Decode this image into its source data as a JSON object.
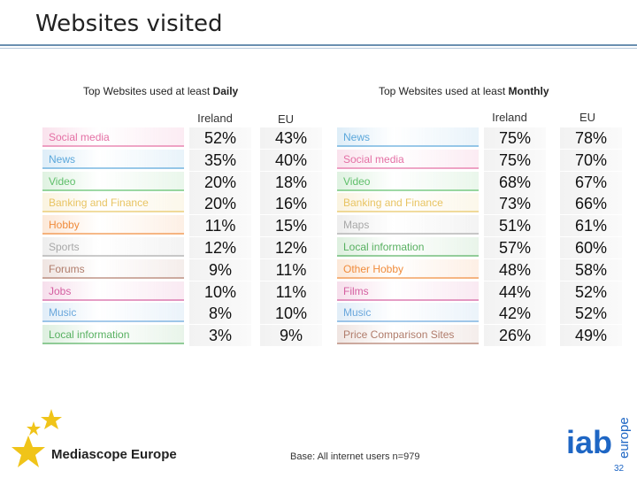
{
  "slide": {
    "title": "Websites visited",
    "base_note": "Base: All internet users n=979",
    "page_number": "32",
    "logo_left": "Mediascope Europe",
    "logo_right": "iab",
    "logo_right_sub": "europe"
  },
  "daily": {
    "title_prefix": "Top Websites used at least ",
    "title_bold": "Daily",
    "col_ireland": "Ireland",
    "col_eu": "EU",
    "rows": [
      {
        "label": "Social media",
        "ireland": "52%",
        "eu": "43%",
        "color": "#e46fa4"
      },
      {
        "label": "News",
        "ireland": "35%",
        "eu": "40%",
        "color": "#5aa7db"
      },
      {
        "label": "Video",
        "ireland": "20%",
        "eu": "18%",
        "color": "#5fbf6a"
      },
      {
        "label": "Banking and Finance",
        "ireland": "20%",
        "eu": "16%",
        "color": "#e8c463"
      },
      {
        "label": "Hobby",
        "ireland": "11%",
        "eu": "15%",
        "color": "#f08c3c"
      },
      {
        "label": "Sports",
        "ireland": "12%",
        "eu": "12%",
        "color": "#a8a8a8"
      },
      {
        "label": "Forums",
        "ireland": "9%",
        "eu": "11%",
        "color": "#b07c6b"
      },
      {
        "label": "Jobs",
        "ireland": "10%",
        "eu": "11%",
        "color": "#d45fa0"
      },
      {
        "label": "Music",
        "ireland": "8%",
        "eu": "10%",
        "color": "#6aa7dc"
      },
      {
        "label": "Local information",
        "ireland": "3%",
        "eu": "9%",
        "color": "#57b060"
      }
    ]
  },
  "monthly": {
    "title_prefix": "Top Websites used at least ",
    "title_bold": "Monthly",
    "col_ireland": "Ireland",
    "col_eu": "EU",
    "rows": [
      {
        "label": "News",
        "ireland": "75%",
        "eu": "78%",
        "color": "#5aa7db"
      },
      {
        "label": "Social media",
        "ireland": "75%",
        "eu": "70%",
        "color": "#e46fa4"
      },
      {
        "label": "Video",
        "ireland": "68%",
        "eu": "67%",
        "color": "#5fbf6a"
      },
      {
        "label": "Banking and Finance",
        "ireland": "73%",
        "eu": "66%",
        "color": "#e8c463"
      },
      {
        "label": "Maps",
        "ireland": "51%",
        "eu": "61%",
        "color": "#a8a8a8"
      },
      {
        "label": "Local information",
        "ireland": "57%",
        "eu": "60%",
        "color": "#57b060"
      },
      {
        "label": "Other Hobby",
        "ireland": "48%",
        "eu": "58%",
        "color": "#f08c3c"
      },
      {
        "label": "Films",
        "ireland": "44%",
        "eu": "52%",
        "color": "#d45fa0"
      },
      {
        "label": "Music",
        "ireland": "42%",
        "eu": "52%",
        "color": "#6aa7dc"
      },
      {
        "label": "Price Comparison Sites",
        "ireland": "26%",
        "eu": "49%",
        "color": "#b07c6b"
      }
    ]
  }
}
